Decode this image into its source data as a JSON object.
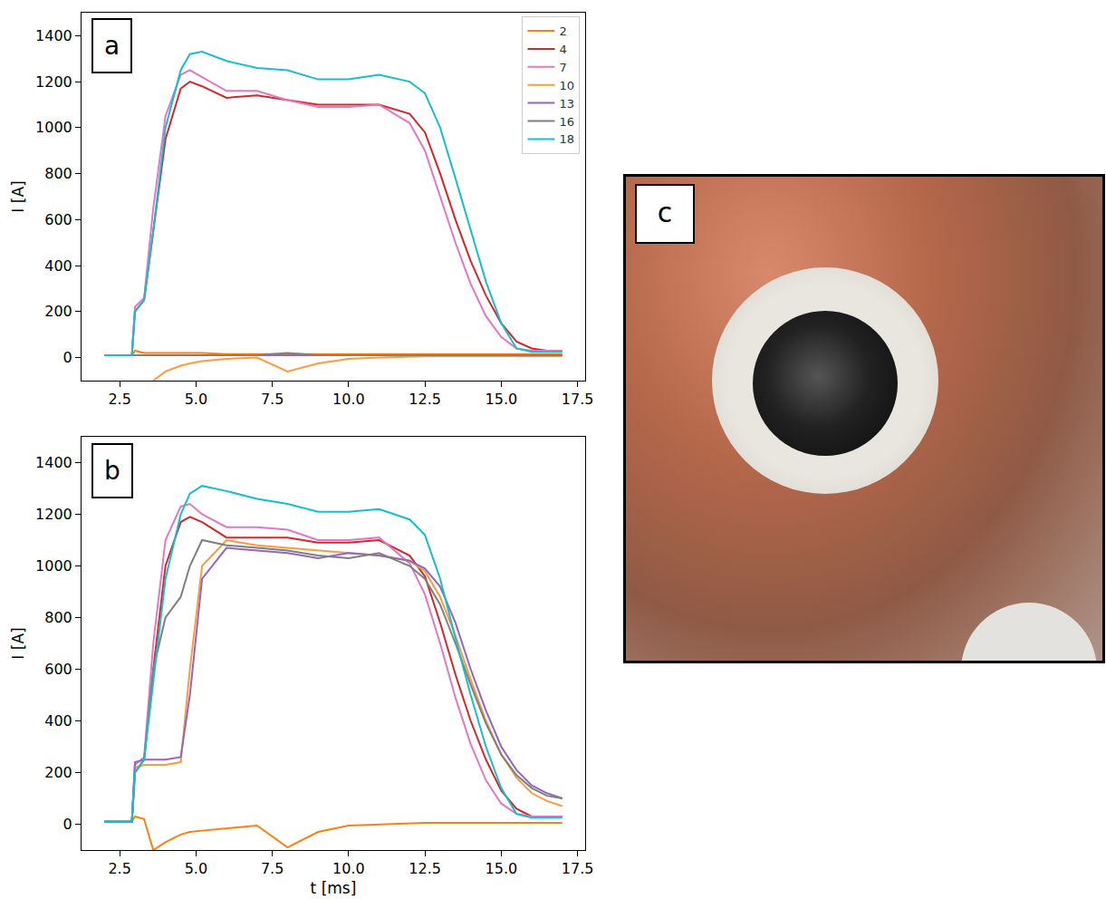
{
  "chart_data": [
    {
      "type": "line",
      "panel": "a",
      "y_label": "I [A]",
      "legend": "upper right",
      "grid": false,
      "xlim": [
        1.25,
        17.75
      ],
      "xticks": [
        2.5,
        {
          "value": 5,
          "label": "5.0"
        },
        7.5,
        {
          "value": 10,
          "label": "10.0"
        },
        12.5,
        {
          "value": 15,
          "label": "15.0"
        },
        17.5
      ],
      "ylim": [
        -100,
        1500
      ],
      "yticks": [
        0,
        200,
        400,
        600,
        800,
        1000,
        1200,
        1400
      ],
      "x": [
        2,
        2.9,
        3.0,
        3.3,
        3.6,
        4.0,
        4.5,
        4.8,
        5.2,
        6,
        7,
        8,
        9,
        10,
        11,
        12,
        12.5,
        13,
        13.5,
        14,
        14.5,
        15,
        15.5,
        16,
        16.5,
        17
      ],
      "series": [
        {
          "name": "2",
          "color": "#ff7f0e",
          "values": [
            10,
            10,
            30,
            20,
            20,
            20,
            20,
            20,
            20,
            15,
            15,
            15,
            15,
            15,
            15,
            15,
            15,
            15,
            15,
            15,
            15,
            15,
            15,
            15,
            15,
            15
          ]
        },
        {
          "name": "4",
          "color": "#d62728",
          "values": [
            10,
            10,
            200,
            250,
            550,
            950,
            1170,
            1200,
            1180,
            1130,
            1140,
            1120,
            1100,
            1100,
            1100,
            1060,
            980,
            800,
            600,
            420,
            270,
            150,
            70,
            40,
            30,
            30
          ]
        },
        {
          "name": "7",
          "color": "#e377c2",
          "values": [
            10,
            10,
            220,
            260,
            650,
            1050,
            1230,
            1250,
            1220,
            1160,
            1160,
            1120,
            1090,
            1090,
            1100,
            1020,
            900,
            700,
            500,
            320,
            180,
            90,
            40,
            30,
            30,
            30
          ]
        },
        {
          "name": "10",
          "color": "#ff9a3c",
          "values": [
            null,
            null,
            null,
            null,
            -100,
            -60,
            -35,
            -25,
            -15,
            -5,
            0,
            -60,
            -25,
            -5,
            0,
            5,
            5,
            5,
            5,
            5,
            5,
            5,
            5,
            5,
            5,
            5
          ]
        },
        {
          "name": "13",
          "color": "#9467bd",
          "values": [
            10,
            10,
            10,
            10,
            10,
            10,
            10,
            10,
            10,
            10,
            10,
            10,
            10,
            10,
            10,
            10,
            10,
            10,
            10,
            10,
            10,
            10,
            10,
            10,
            10,
            10
          ]
        },
        {
          "name": "16",
          "color": "#7f7f7f",
          "values": [
            10,
            10,
            10,
            10,
            10,
            10,
            10,
            10,
            10,
            10,
            10,
            20,
            10,
            10,
            10,
            10,
            10,
            10,
            10,
            10,
            10,
            10,
            10,
            10,
            10,
            10
          ]
        },
        {
          "name": "18",
          "color": "#17becf",
          "values": [
            10,
            10,
            200,
            250,
            550,
            1000,
            1250,
            1320,
            1330,
            1290,
            1260,
            1250,
            1210,
            1210,
            1230,
            1200,
            1150,
            1000,
            780,
            550,
            330,
            150,
            40,
            25,
            25,
            25
          ]
        }
      ]
    },
    {
      "type": "line",
      "panel": "b",
      "x_label": "t [ms]",
      "y_label": "I [A]",
      "legend": "none",
      "grid": false,
      "xlim": [
        1.25,
        17.75
      ],
      "xticks": [
        2.5,
        {
          "value": 5,
          "label": "5.0"
        },
        7.5,
        {
          "value": 10,
          "label": "10.0"
        },
        12.5,
        {
          "value": 15,
          "label": "15.0"
        },
        17.5
      ],
      "ylim": [
        -100,
        1500
      ],
      "yticks": [
        0,
        200,
        400,
        600,
        800,
        1000,
        1200,
        1400
      ],
      "x": [
        2,
        2.9,
        3.0,
        3.3,
        3.6,
        4.0,
        4.5,
        4.8,
        5.2,
        6,
        7,
        8,
        9,
        10,
        11,
        12,
        12.5,
        13,
        13.5,
        14,
        14.5,
        15,
        15.5,
        16,
        16.5,
        17
      ],
      "series": [
        {
          "name": "2",
          "color": "#ff7f0e",
          "values": [
            10,
            10,
            30,
            20,
            -100,
            -70,
            -40,
            -30,
            -25,
            -15,
            -5,
            -90,
            -30,
            -5,
            0,
            5,
            5,
            5,
            5,
            5,
            5,
            5,
            5,
            5,
            5,
            5
          ]
        },
        {
          "name": "4",
          "color": "#d62728",
          "values": [
            10,
            10,
            200,
            250,
            600,
            1000,
            1170,
            1190,
            1170,
            1110,
            1110,
            1110,
            1090,
            1090,
            1100,
            1040,
            960,
            780,
            580,
            400,
            250,
            130,
            60,
            30,
            30,
            30
          ]
        },
        {
          "name": "7",
          "color": "#e377c2",
          "values": [
            10,
            10,
            230,
            260,
            700,
            1100,
            1230,
            1240,
            1200,
            1150,
            1150,
            1140,
            1100,
            1100,
            1110,
            1010,
            890,
            700,
            490,
            310,
            170,
            80,
            40,
            30,
            30,
            30
          ]
        },
        {
          "name": "10",
          "color": "#ff9a3c",
          "values": [
            10,
            10,
            220,
            230,
            230,
            230,
            240,
            600,
            1000,
            1100,
            1080,
            1070,
            1060,
            1050,
            1040,
            1020,
            980,
            880,
            730,
            560,
            400,
            270,
            180,
            120,
            90,
            70
          ]
        },
        {
          "name": "13",
          "color": "#9467bd",
          "values": [
            10,
            10,
            240,
            250,
            250,
            250,
            260,
            500,
            950,
            1070,
            1060,
            1050,
            1030,
            1050,
            1040,
            1020,
            990,
            920,
            780,
            600,
            440,
            300,
            210,
            150,
            120,
            100
          ]
        },
        {
          "name": "16",
          "color": "#7f7f7f",
          "values": [
            10,
            10,
            200,
            250,
            600,
            800,
            880,
            1000,
            1100,
            1080,
            1070,
            1060,
            1040,
            1030,
            1050,
            1000,
            950,
            850,
            700,
            540,
            390,
            270,
            190,
            140,
            110,
            100
          ]
        },
        {
          "name": "18",
          "color": "#17becf",
          "values": [
            10,
            10,
            200,
            250,
            550,
            950,
            1200,
            1280,
            1310,
            1290,
            1260,
            1240,
            1210,
            1210,
            1220,
            1180,
            1120,
            950,
            720,
            500,
            300,
            140,
            40,
            25,
            25,
            25
          ]
        }
      ]
    }
  ],
  "image_panel": {
    "panel": "c"
  }
}
